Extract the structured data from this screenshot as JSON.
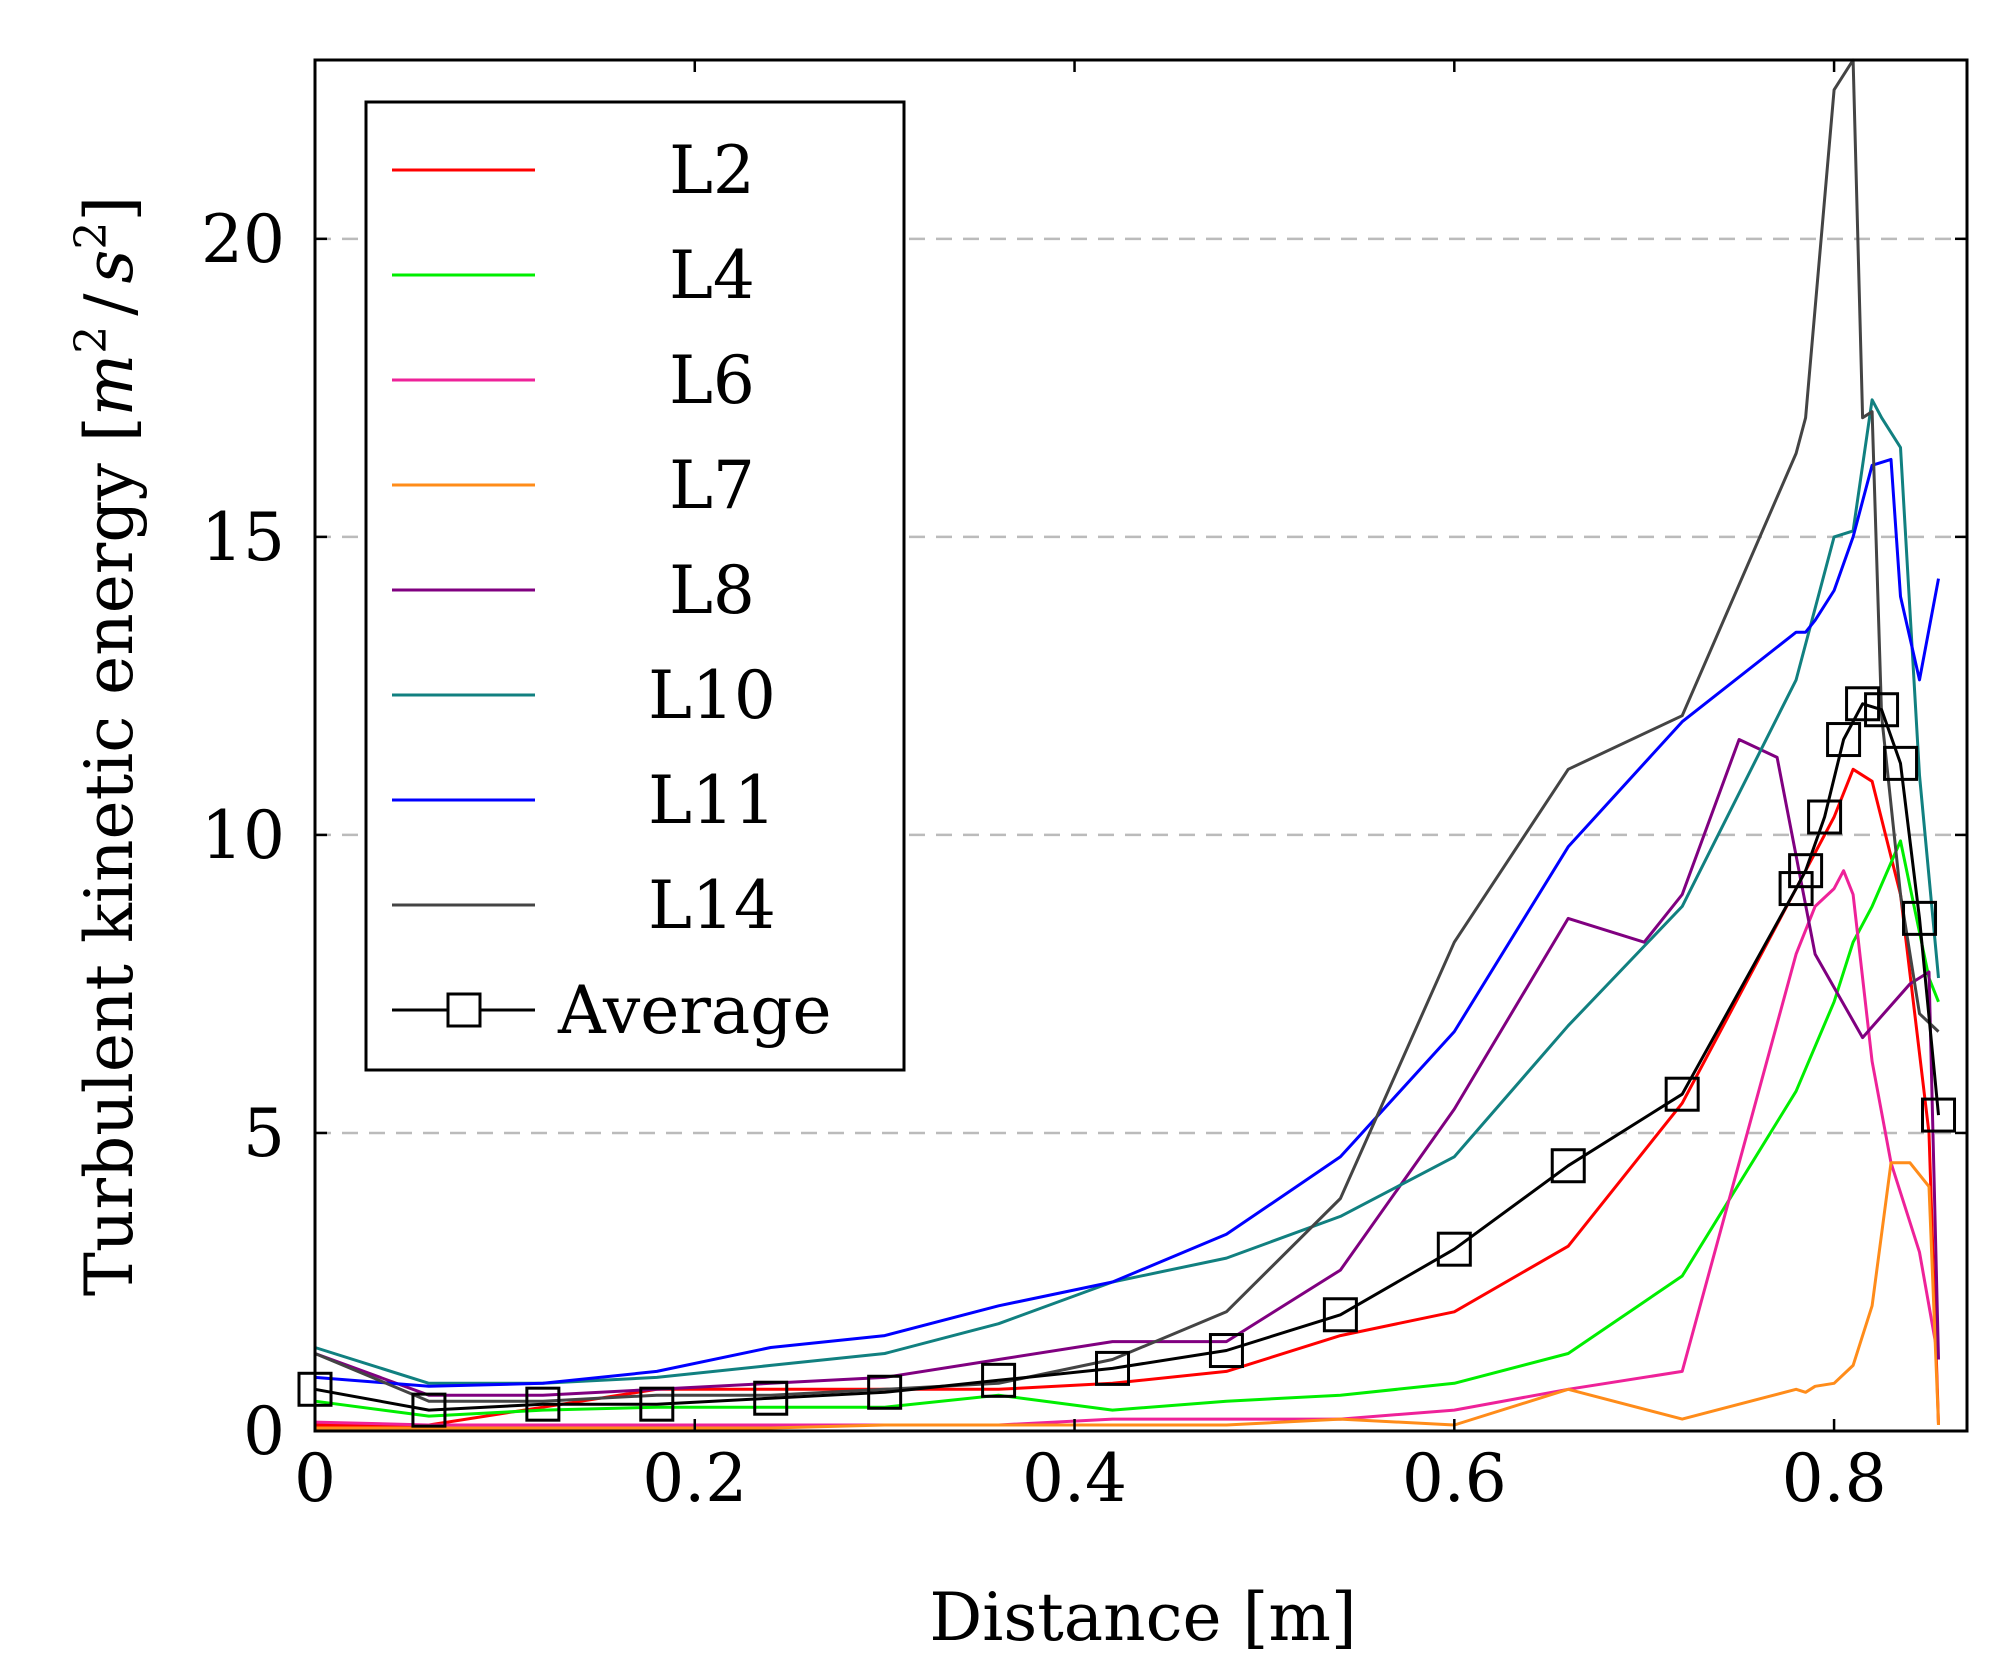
{
  "chart_data": {
    "type": "line",
    "title": "",
    "xlabel": "Distance [m]",
    "ylabel": "Turbulent kinetic energy [m²/s²]",
    "ylabel_parts": {
      "text": "Turbulent kinetic energy ",
      "unit_m": "m",
      "unit_exp1": "2",
      "unit_slash": "/",
      "unit_s": "s",
      "unit_exp2": "2"
    },
    "xlim": [
      0,
      0.87
    ],
    "ylim": [
      0,
      23
    ],
    "xticks": [
      0,
      0.2,
      0.4,
      0.6,
      0.8
    ],
    "xtick_labels": [
      "0",
      "0.2",
      "0.4",
      "0.6",
      "0.8"
    ],
    "yticks": [
      0,
      5,
      10,
      15,
      20
    ],
    "ytick_labels": [
      "0",
      "5",
      "10",
      "15",
      "20"
    ],
    "grid": {
      "y": "dashed",
      "x": false
    },
    "legend_position": "top-left",
    "series": [
      {
        "name": "L2",
        "color": "#ff0000",
        "marker": "none",
        "x": [
          0,
          0.06,
          0.12,
          0.18,
          0.24,
          0.3,
          0.36,
          0.42,
          0.48,
          0.54,
          0.6,
          0.66,
          0.72,
          0.78,
          0.8,
          0.81,
          0.82,
          0.835,
          0.85,
          0.855
        ],
        "y": [
          0.1,
          0.1,
          0.4,
          0.7,
          0.7,
          0.7,
          0.7,
          0.8,
          1.0,
          1.6,
          2.0,
          3.1,
          5.5,
          9.1,
          10.3,
          11.1,
          10.9,
          9.0,
          5.0,
          0.1
        ]
      },
      {
        "name": "L4",
        "color": "#00ee00",
        "marker": "none",
        "x": [
          0,
          0.06,
          0.12,
          0.18,
          0.24,
          0.3,
          0.36,
          0.42,
          0.48,
          0.54,
          0.6,
          0.66,
          0.72,
          0.78,
          0.8,
          0.81,
          0.82,
          0.835,
          0.85,
          0.855
        ],
        "y": [
          0.5,
          0.25,
          0.35,
          0.4,
          0.4,
          0.4,
          0.6,
          0.35,
          0.5,
          0.6,
          0.8,
          1.3,
          2.6,
          5.7,
          7.2,
          8.2,
          8.8,
          9.9,
          7.6,
          7.2
        ]
      },
      {
        "name": "L6",
        "color": "#ee2299",
        "marker": "none",
        "x": [
          0,
          0.06,
          0.12,
          0.18,
          0.24,
          0.3,
          0.36,
          0.42,
          0.48,
          0.54,
          0.6,
          0.66,
          0.72,
          0.78,
          0.79,
          0.8,
          0.805,
          0.81,
          0.82,
          0.83,
          0.845,
          0.855
        ],
        "y": [
          0.15,
          0.1,
          0.1,
          0.1,
          0.1,
          0.1,
          0.1,
          0.2,
          0.2,
          0.2,
          0.35,
          0.7,
          1.0,
          8.0,
          8.8,
          9.1,
          9.4,
          9.0,
          6.2,
          4.5,
          3.0,
          1.2
        ]
      },
      {
        "name": "L7",
        "color": "#ff8c1a",
        "marker": "none",
        "x": [
          0,
          0.06,
          0.12,
          0.18,
          0.24,
          0.3,
          0.36,
          0.42,
          0.48,
          0.54,
          0.6,
          0.66,
          0.72,
          0.78,
          0.785,
          0.79,
          0.8,
          0.81,
          0.82,
          0.83,
          0.84,
          0.85,
          0.855
        ],
        "y": [
          0.05,
          0.05,
          0.05,
          0.05,
          0.05,
          0.1,
          0.1,
          0.1,
          0.1,
          0.2,
          0.1,
          0.7,
          0.2,
          0.7,
          0.65,
          0.75,
          0.8,
          1.1,
          2.1,
          4.5,
          4.5,
          4.1,
          0.1
        ]
      },
      {
        "name": "L8",
        "color": "#800080",
        "marker": "none",
        "x": [
          0,
          0.06,
          0.12,
          0.18,
          0.24,
          0.3,
          0.36,
          0.42,
          0.48,
          0.54,
          0.6,
          0.66,
          0.7,
          0.72,
          0.75,
          0.77,
          0.79,
          0.815,
          0.84,
          0.85,
          0.855
        ],
        "y": [
          1.3,
          0.6,
          0.6,
          0.7,
          0.8,
          0.9,
          1.2,
          1.5,
          1.5,
          2.7,
          5.4,
          8.6,
          8.2,
          9.0,
          11.6,
          11.3,
          8.0,
          6.6,
          7.5,
          7.7,
          1.2
        ]
      },
      {
        "name": "L10",
        "color": "#118080",
        "marker": "none",
        "x": [
          0,
          0.06,
          0.12,
          0.18,
          0.24,
          0.3,
          0.36,
          0.42,
          0.48,
          0.54,
          0.6,
          0.66,
          0.72,
          0.78,
          0.8,
          0.81,
          0.82,
          0.825,
          0.835,
          0.845,
          0.855
        ],
        "y": [
          1.4,
          0.8,
          0.8,
          0.9,
          1.1,
          1.3,
          1.8,
          2.5,
          2.9,
          3.6,
          4.6,
          6.8,
          8.8,
          12.6,
          15.0,
          15.1,
          17.3,
          17.0,
          16.5,
          11.0,
          7.6
        ]
      },
      {
        "name": "L11",
        "color": "#0000ff",
        "marker": "none",
        "x": [
          0,
          0.06,
          0.12,
          0.18,
          0.24,
          0.3,
          0.36,
          0.42,
          0.48,
          0.54,
          0.6,
          0.66,
          0.72,
          0.78,
          0.785,
          0.79,
          0.8,
          0.81,
          0.82,
          0.83,
          0.835,
          0.845,
          0.855
        ],
        "y": [
          0.9,
          0.75,
          0.8,
          1.0,
          1.4,
          1.6,
          2.1,
          2.5,
          3.3,
          4.6,
          6.7,
          9.8,
          11.9,
          13.4,
          13.4,
          13.6,
          14.1,
          15.0,
          16.2,
          16.3,
          14.0,
          12.6,
          14.3
        ]
      },
      {
        "name": "L14",
        "color": "#444444",
        "marker": "none",
        "x": [
          0,
          0.06,
          0.12,
          0.18,
          0.24,
          0.3,
          0.36,
          0.42,
          0.48,
          0.54,
          0.6,
          0.66,
          0.72,
          0.78,
          0.785,
          0.8,
          0.81,
          0.815,
          0.82,
          0.825,
          0.835,
          0.845,
          0.855
        ],
        "y": [
          1.3,
          0.5,
          0.5,
          0.6,
          0.6,
          0.7,
          0.8,
          1.2,
          2.0,
          3.9,
          8.2,
          11.1,
          12.0,
          16.4,
          17.0,
          22.5,
          23.0,
          17.0,
          17.1,
          12.0,
          9.0,
          7.0,
          6.7
        ]
      },
      {
        "name": "Average",
        "color": "#000000",
        "marker": "square",
        "x": [
          0,
          0.06,
          0.12,
          0.18,
          0.24,
          0.3,
          0.36,
          0.42,
          0.48,
          0.54,
          0.6,
          0.66,
          0.72,
          0.78,
          0.785,
          0.795,
          0.805,
          0.815,
          0.825,
          0.835,
          0.845,
          0.855
        ],
        "y": [
          0.7,
          0.35,
          0.45,
          0.45,
          0.55,
          0.65,
          0.85,
          1.05,
          1.35,
          1.95,
          3.05,
          4.45,
          5.65,
          9.1,
          9.4,
          10.3,
          11.6,
          12.2,
          12.1,
          11.2,
          8.6,
          5.3
        ]
      }
    ]
  }
}
